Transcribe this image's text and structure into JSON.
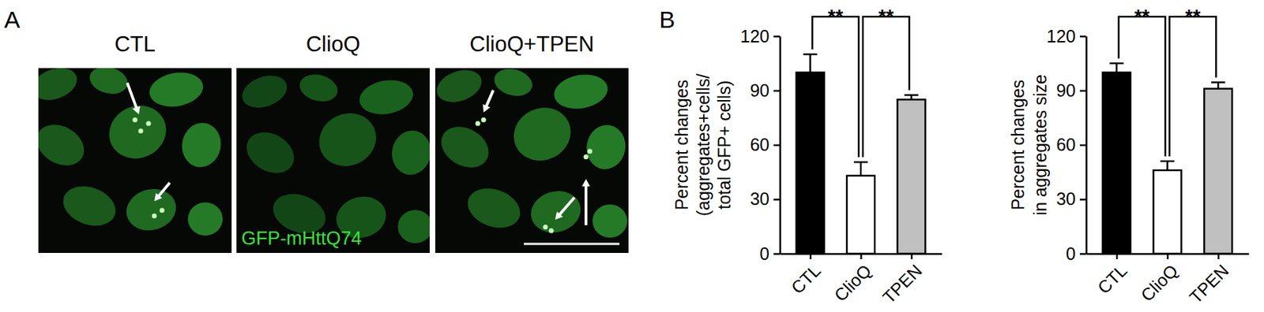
{
  "panel_a": {
    "label": "A",
    "titles": [
      "CTL",
      "ClioQ",
      "ClioQ+TPEN"
    ],
    "image_label": "GFP-mHttQ74"
  },
  "panel_b": {
    "label": "B"
  },
  "chart_data": [
    {
      "type": "bar",
      "y_label": [
        "Percent changes",
        "(aggregates+cells/",
        "total GFP+ cells)"
      ],
      "categories": [
        "CTL",
        "ClioQ",
        "TPEN"
      ],
      "values": [
        100,
        43,
        85
      ],
      "errors": [
        10,
        7.5,
        2.5
      ],
      "colors": [
        "#000000",
        "#ffffff",
        "#c0c0c0"
      ],
      "ylim": [
        0,
        120
      ],
      "yticks": [
        0,
        30,
        60,
        90,
        120
      ],
      "annotations": [
        {
          "text": "**",
          "between": [
            "CTL",
            "ClioQ"
          ]
        },
        {
          "text": "**",
          "between": [
            "ClioQ",
            "TPEN"
          ]
        }
      ]
    },
    {
      "type": "bar",
      "y_label": [
        "Percent changes",
        "in aggregates size"
      ],
      "categories": [
        "CTL",
        "ClioQ",
        "TPEN"
      ],
      "values": [
        100,
        46,
        91
      ],
      "errors": [
        5,
        5,
        3.5
      ],
      "colors": [
        "#000000",
        "#ffffff",
        "#c0c0c0"
      ],
      "ylim": [
        0,
        120
      ],
      "yticks": [
        0,
        30,
        60,
        90,
        120
      ],
      "annotations": [
        {
          "text": "**",
          "between": [
            "CTL",
            "ClioQ"
          ]
        },
        {
          "text": "**",
          "between": [
            "ClioQ",
            "TPEN"
          ]
        }
      ]
    }
  ]
}
